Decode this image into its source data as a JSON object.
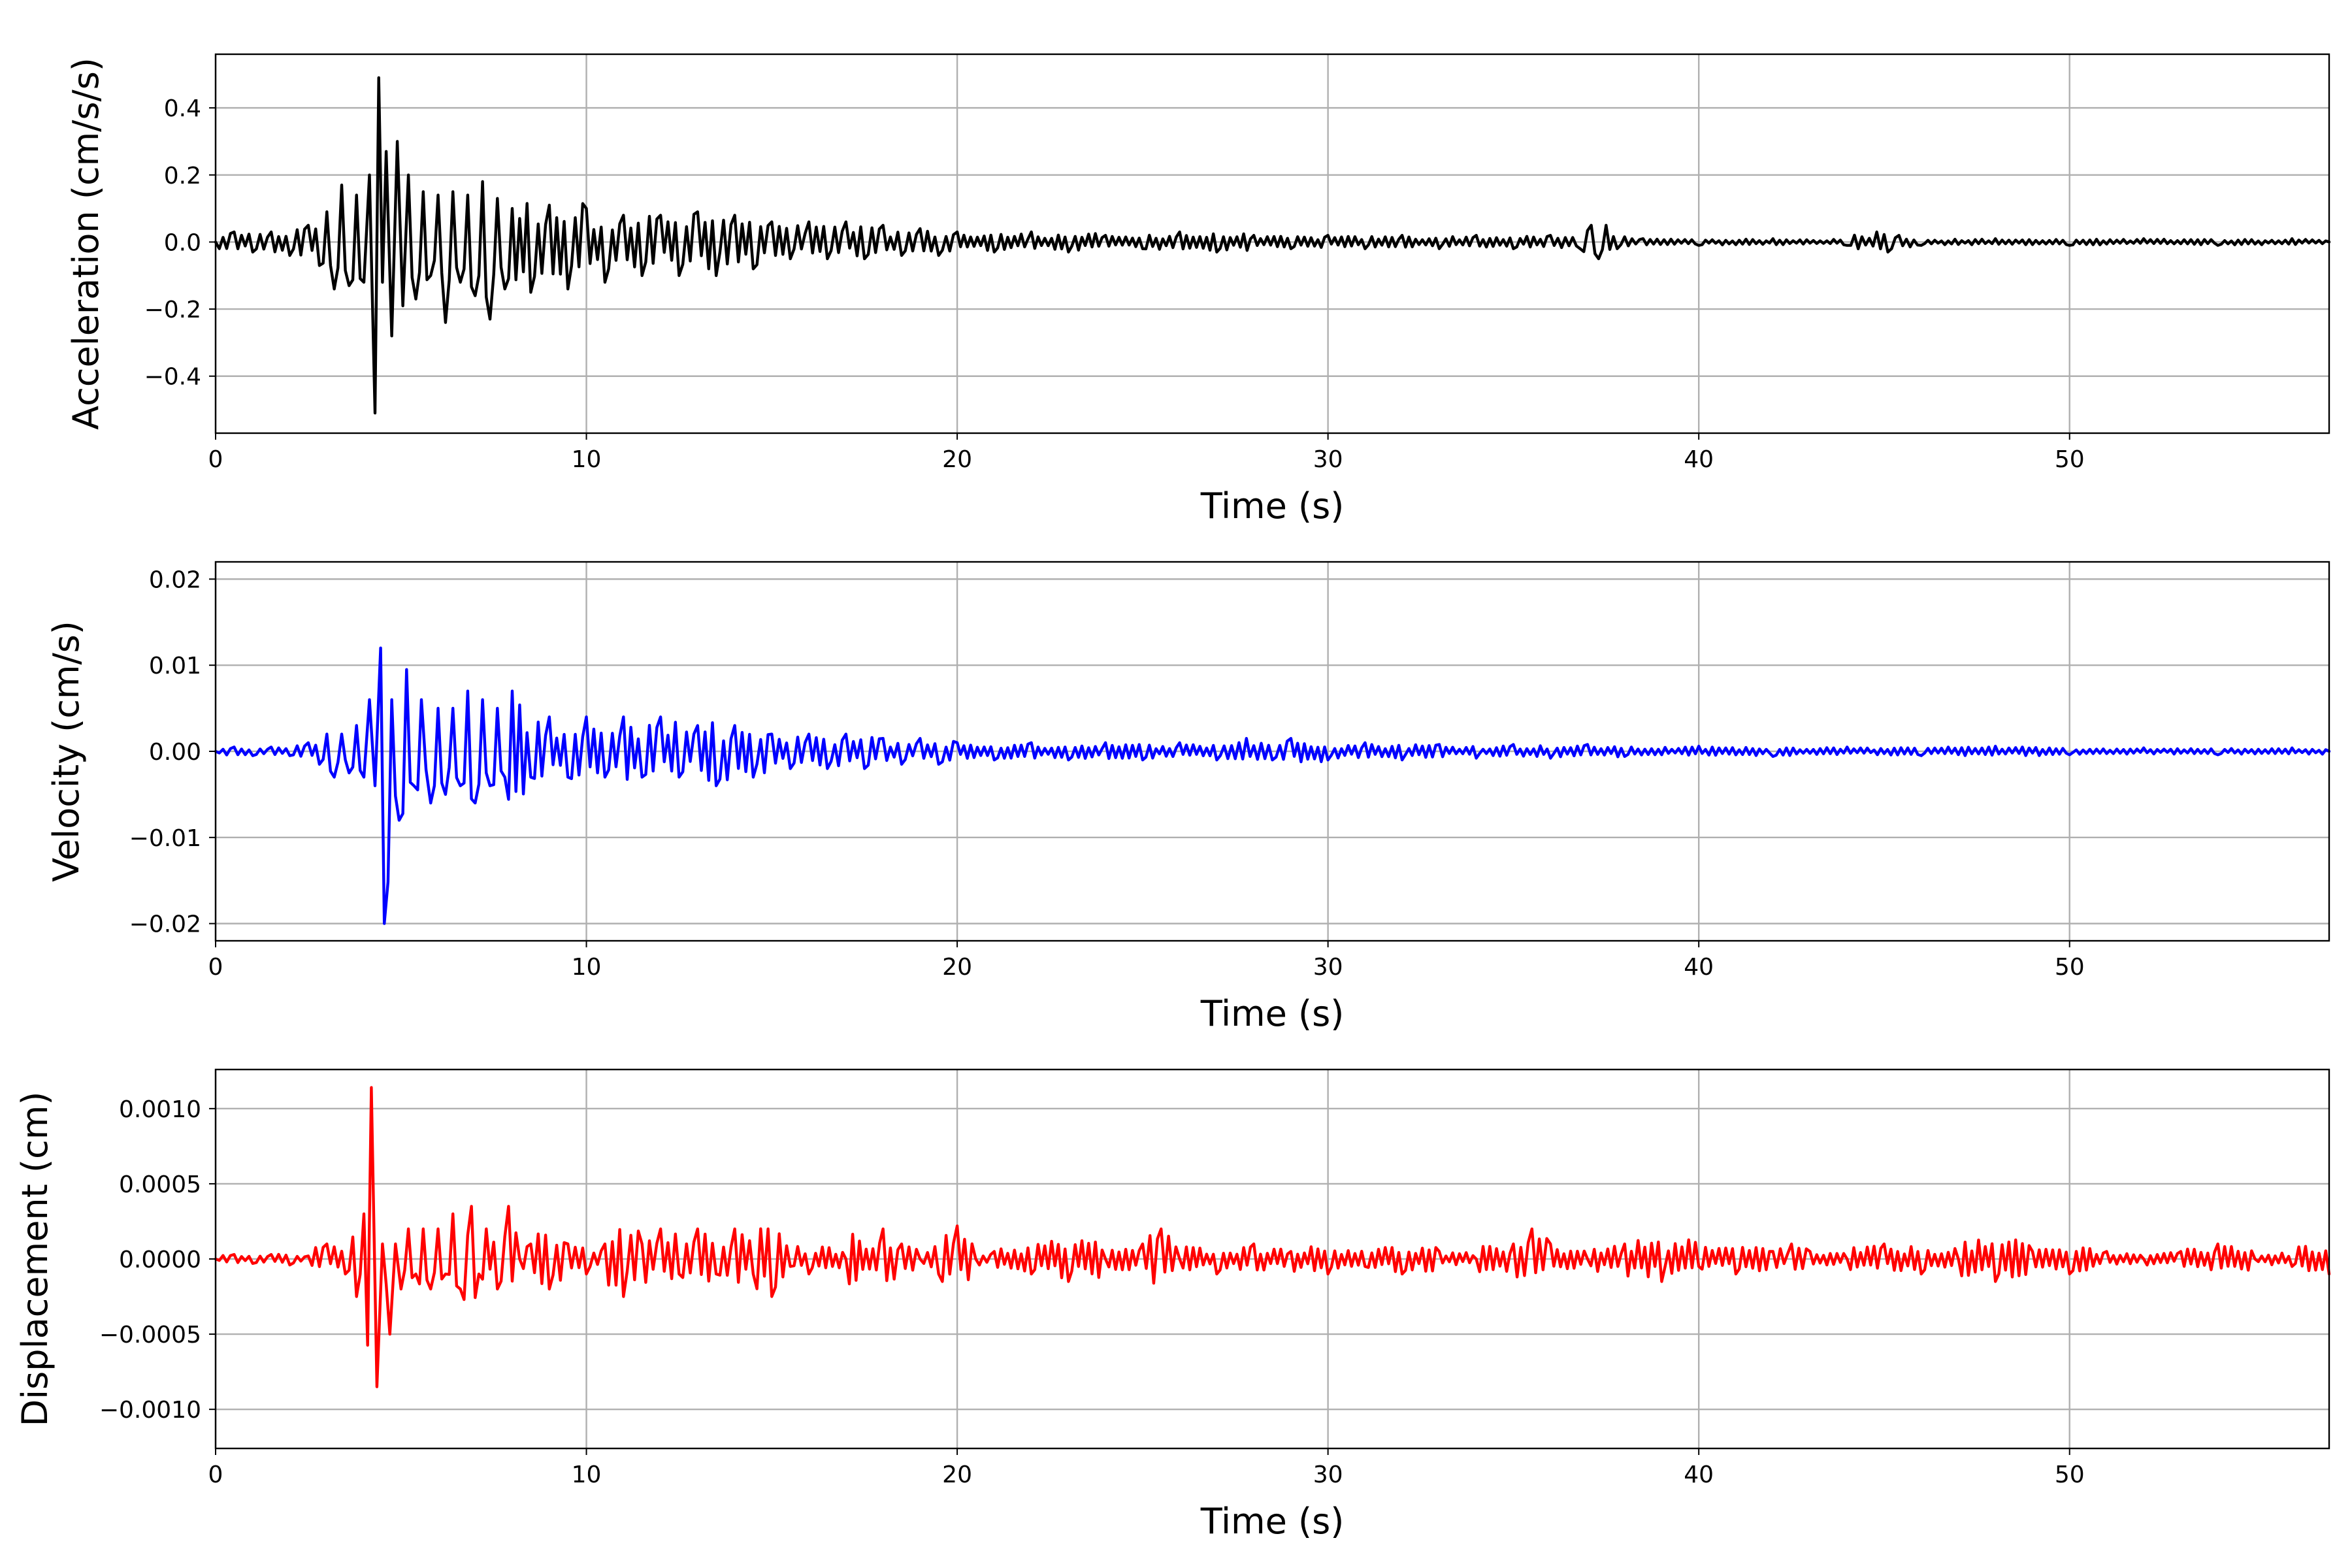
{
  "chart_data": [
    {
      "type": "line",
      "xlabel": "Time (s)",
      "ylabel": "Acceleration (cm/s/s)",
      "xlim": [
        0,
        57
      ],
      "ylim": [
        -0.57,
        0.56
      ],
      "xticks": [
        0,
        10,
        20,
        30,
        40,
        50
      ],
      "xtick_labels": [
        "0",
        "10",
        "20",
        "30",
        "40",
        "50"
      ],
      "yticks": [
        -0.4,
        -0.2,
        0.0,
        0.2,
        0.4
      ],
      "ytick_labels": [
        "−0.4",
        "−0.2",
        "0.0",
        "0.2",
        "0.4"
      ],
      "grid": true,
      "color": "#000000",
      "series": [
        {
          "name": "",
          "x": [
            0,
            0.5,
            1,
            1.5,
            2,
            2.5,
            2.8,
            3,
            3.2,
            3.4,
            3.6,
            3.8,
            4,
            4.15,
            4.3,
            4.4,
            4.5,
            4.6,
            4.75,
            4.9,
            5.05,
            5.2,
            5.4,
            5.6,
            5.8,
            6,
            6.2,
            6.4,
            6.6,
            6.8,
            7,
            7.2,
            7.4,
            7.6,
            7.8,
            8,
            8.5,
            9,
            9.5,
            10,
            10.5,
            11,
            11.5,
            12,
            12.5,
            13,
            13.5,
            14,
            14.5,
            15,
            15.5,
            16,
            16.5,
            17,
            17.5,
            18,
            18.5,
            19,
            19.5,
            20,
            21,
            22,
            23,
            24,
            25,
            26,
            27,
            28,
            29,
            30,
            31,
            32,
            33,
            34,
            35,
            36,
            36.8,
            37.1,
            37.3,
            37.5,
            37.8,
            38.5,
            40,
            42,
            44,
            44.8,
            45.1,
            45.4,
            46,
            48,
            50,
            52,
            54,
            56,
            57
          ],
          "y": [
            0.0,
            0.03,
            -0.03,
            0.03,
            -0.04,
            0.05,
            -0.07,
            0.09,
            -0.14,
            0.17,
            -0.13,
            0.14,
            -0.12,
            0.2,
            -0.51,
            0.49,
            -0.12,
            0.27,
            -0.28,
            0.3,
            -0.19,
            0.2,
            -0.17,
            0.15,
            -0.1,
            0.14,
            -0.24,
            0.15,
            -0.12,
            0.14,
            -0.16,
            0.18,
            -0.23,
            0.13,
            -0.14,
            0.1,
            -0.15,
            0.11,
            -0.14,
            0.1,
            -0.12,
            0.08,
            -0.1,
            0.08,
            -0.1,
            0.09,
            -0.1,
            0.08,
            -0.08,
            0.06,
            -0.05,
            0.06,
            -0.05,
            0.06,
            -0.05,
            0.05,
            -0.04,
            0.04,
            -0.04,
            0.03,
            -0.03,
            0.03,
            -0.03,
            0.02,
            -0.02,
            0.03,
            -0.03,
            0.02,
            -0.02,
            0.02,
            -0.02,
            0.02,
            -0.02,
            0.02,
            -0.02,
            0.02,
            -0.02,
            0.05,
            -0.05,
            0.05,
            -0.02,
            0.01,
            -0.01,
            0.01,
            -0.01,
            0.03,
            -0.03,
            0.02,
            -0.01,
            0.01,
            -0.01,
            0.01,
            -0.01,
            0.01,
            0.0
          ]
        }
      ]
    },
    {
      "type": "line",
      "xlabel": "Time (s)",
      "ylabel": "Velocity (cm/s)",
      "xlim": [
        0,
        57
      ],
      "ylim": [
        -0.022,
        0.022
      ],
      "xticks": [
        0,
        10,
        20,
        30,
        40,
        50
      ],
      "xtick_labels": [
        "0",
        "10",
        "20",
        "30",
        "40",
        "50"
      ],
      "yticks": [
        -0.02,
        -0.01,
        0.0,
        0.01,
        0.02
      ],
      "ytick_labels": [
        "−0.02",
        "−0.01",
        "0.00",
        "0.01",
        "0.02"
      ],
      "grid": true,
      "color": "#0000ff",
      "series": [
        {
          "name": "",
          "x": [
            0,
            0.5,
            1,
            1.5,
            2,
            2.5,
            2.8,
            3,
            3.2,
            3.4,
            3.6,
            3.8,
            4,
            4.15,
            4.3,
            4.45,
            4.55,
            4.75,
            4.95,
            5.15,
            5.35,
            5.55,
            5.8,
            6,
            6.2,
            6.4,
            6.6,
            6.8,
            7,
            7.2,
            7.4,
            7.6,
            7.8,
            8,
            8.5,
            9,
            9.5,
            10,
            10.5,
            11,
            11.5,
            12,
            12.5,
            13,
            13.5,
            14,
            14.5,
            15,
            15.5,
            16,
            16.5,
            17,
            17.5,
            18,
            18.5,
            19,
            19.5,
            20,
            21,
            22,
            23,
            24,
            25,
            26,
            27,
            27.8,
            28.5,
            29,
            30,
            31,
            32,
            33,
            34,
            35,
            36,
            37,
            38,
            40,
            42,
            44,
            46,
            48,
            50,
            52,
            54,
            56,
            57
          ],
          "y": [
            0.0,
            0.0005,
            -0.0005,
            0.0005,
            -0.0005,
            0.001,
            -0.0015,
            0.002,
            -0.003,
            0.002,
            -0.0025,
            0.003,
            -0.003,
            0.006,
            -0.004,
            0.012,
            -0.02,
            0.006,
            -0.008,
            0.0095,
            -0.004,
            0.006,
            -0.006,
            0.005,
            -0.005,
            0.005,
            -0.004,
            0.007,
            -0.006,
            0.006,
            -0.004,
            0.005,
            -0.003,
            0.007,
            -0.003,
            0.004,
            -0.003,
            0.004,
            -0.003,
            0.004,
            -0.003,
            0.004,
            -0.003,
            0.003,
            -0.004,
            0.003,
            -0.003,
            0.002,
            -0.002,
            0.002,
            -0.002,
            0.002,
            -0.002,
            0.0015,
            -0.0015,
            0.0015,
            -0.0015,
            0.001,
            -0.001,
            0.001,
            -0.001,
            0.001,
            -0.001,
            0.001,
            -0.001,
            0.0015,
            -0.001,
            0.0015,
            -0.001,
            0.001,
            -0.001,
            0.0008,
            -0.0008,
            0.0008,
            -0.0008,
            0.0008,
            -0.0006,
            0.0006,
            -0.0006,
            0.0005,
            -0.0005,
            0.0006,
            -0.0004,
            0.0004,
            -0.0004,
            0.0004,
            0.0
          ]
        }
      ]
    },
    {
      "type": "line",
      "xlabel": "Time (s)",
      "ylabel": "Displacement (cm)",
      "xlim": [
        0,
        57
      ],
      "ylim": [
        -0.00126,
        0.00126
      ],
      "xticks": [
        0,
        10,
        20,
        30,
        40,
        50
      ],
      "xtick_labels": [
        "0",
        "10",
        "20",
        "30",
        "40",
        "50"
      ],
      "yticks": [
        -0.001,
        -0.0005,
        0.0,
        0.0005,
        0.001
      ],
      "ytick_labels": [
        "−0.0010",
        "−0.0005",
        "0.0000",
        "0.0005",
        "0.0010"
      ],
      "grid": true,
      "color": "#ff0000",
      "series": [
        {
          "name": "",
          "x": [
            0,
            0.5,
            1,
            1.5,
            2,
            2.5,
            3,
            3.5,
            3.8,
            4,
            4.2,
            4.35,
            4.5,
            4.7,
            4.85,
            5,
            5.2,
            5.4,
            5.6,
            5.8,
            6,
            6.2,
            6.4,
            6.6,
            6.9,
            7.1,
            7.3,
            7.6,
            7.9,
            8.2,
            8.5,
            9,
            9.5,
            10,
            10.5,
            11,
            11.5,
            12,
            12.5,
            13,
            13.5,
            14,
            14.5,
            15,
            15.5,
            16,
            17,
            18,
            18.5,
            19,
            19.5,
            20,
            20.5,
            21,
            22,
            23,
            24,
            25,
            25.5,
            26,
            27,
            28,
            29,
            30,
            31,
            32,
            33,
            34,
            35,
            35.5,
            36,
            37,
            38,
            39,
            40,
            41,
            42,
            42.5,
            43,
            44,
            45,
            46,
            47,
            48,
            49,
            50,
            51,
            52,
            53,
            54,
            55,
            56,
            57
          ],
          "y": [
            0.0,
            3e-05,
            -3e-05,
            3e-05,
            -4e-05,
            2e-05,
            0.0001,
            -0.0001,
            -0.00025,
            0.0003,
            0.00114,
            -0.00085,
            0.0001,
            -0.0005,
            0.0001,
            -0.0002,
            0.0002,
            -0.0001,
            0.0002,
            -0.0002,
            0.0002,
            -0.0001,
            0.0003,
            -0.0002,
            0.00035,
            -0.0001,
            0.0002,
            -0.0002,
            0.00035,
            0.0,
            0.0001,
            -0.0002,
            0.0001,
            -0.0001,
            0.0001,
            -0.00025,
            0.0001,
            0.0002,
            -0.0001,
            0.0002,
            -0.0001,
            0.0002,
            -0.0001,
            -0.00025,
            -5e-05,
            -0.0001,
            0.0,
            0.0002,
            0.0001,
            0.0,
            -0.0001,
            0.00022,
            0.0,
            5e-05,
            -0.0001,
            -0.00015,
            0.0,
            0.0001,
            0.0002,
            0.0,
            -0.0001,
            0.0001,
            5e-05,
            -0.0001,
            -5e-05,
            -0.0001,
            5e-05,
            0.0,
            0.0001,
            0.0002,
            0.0001,
            0.0,
            0.0001,
            -0.00015,
            -5e-05,
            -0.0001,
            5e-05,
            0.0001,
            5e-05,
            0.0,
            0.0001,
            -0.0001,
            0.0,
            -0.00015,
            5e-05,
            -0.0001,
            5e-05,
            0.0,
            5e-05,
            0.0001,
            0.0,
            -5e-05,
            -0.0001
          ]
        }
      ]
    }
  ]
}
